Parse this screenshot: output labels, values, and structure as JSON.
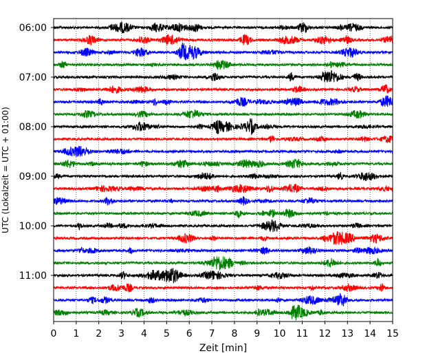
{
  "chart_data": {
    "type": "line",
    "title": "",
    "xlabel": "Zeit  [min]",
    "ylabel": "UTC (Lokalzeit = UTC + 01:00)",
    "xlim": [
      0,
      15
    ],
    "x_ticks": [
      "0",
      "1",
      "2",
      "3",
      "4",
      "5",
      "6",
      "7",
      "8",
      "9",
      "10",
      "11",
      "12",
      "13",
      "14",
      "15"
    ],
    "y_ticks": [
      "06:00",
      "07:00",
      "08:00",
      "09:00",
      "10:00",
      "11:00"
    ],
    "grid": "vertical dotted",
    "legend": "none",
    "trace_colors": [
      "#000000",
      "#ff0000",
      "#0000ff",
      "#008000"
    ],
    "traces_start": "06:00",
    "trace_interval_min": 15,
    "trace_count": 24
  }
}
